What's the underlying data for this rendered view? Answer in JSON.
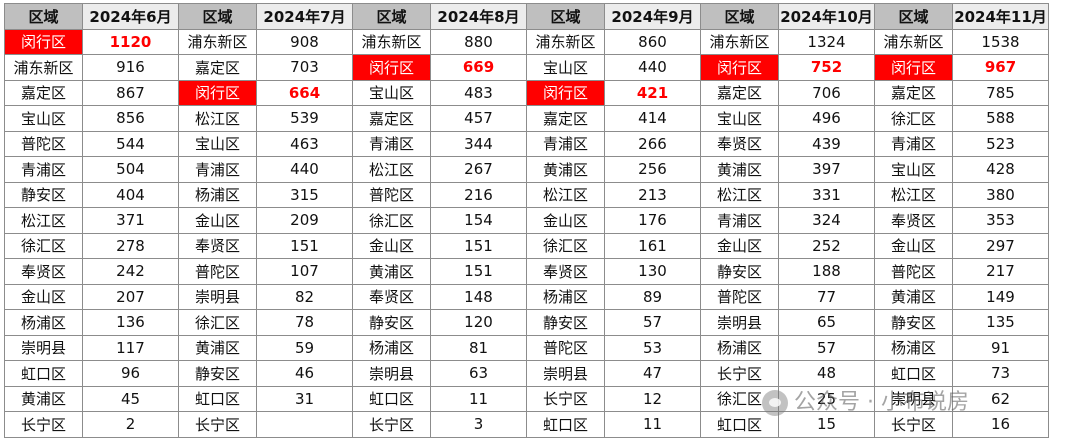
{
  "months": [
    {
      "region_header": "区域",
      "value_header": "2024年6月",
      "rows": [
        {
          "region": "闵行区",
          "value": "1120",
          "highlight": true
        },
        {
          "region": "浦东新区",
          "value": "916"
        },
        {
          "region": "嘉定区",
          "value": "867"
        },
        {
          "region": "宝山区",
          "value": "856"
        },
        {
          "region": "普陀区",
          "value": "544"
        },
        {
          "region": "青浦区",
          "value": "504"
        },
        {
          "region": "静安区",
          "value": "404"
        },
        {
          "region": "松江区",
          "value": "371"
        },
        {
          "region": "徐汇区",
          "value": "278"
        },
        {
          "region": "奉贤区",
          "value": "242"
        },
        {
          "region": "金山区",
          "value": "207"
        },
        {
          "region": "杨浦区",
          "value": "136"
        },
        {
          "region": "崇明县",
          "value": "117"
        },
        {
          "region": "虹口区",
          "value": "96"
        },
        {
          "region": "黄浦区",
          "value": "45"
        },
        {
          "region": "长宁区",
          "value": "2"
        }
      ]
    },
    {
      "region_header": "区域",
      "value_header": "2024年7月",
      "rows": [
        {
          "region": "浦东新区",
          "value": "908"
        },
        {
          "region": "嘉定区",
          "value": "703"
        },
        {
          "region": "闵行区",
          "value": "664",
          "highlight": true
        },
        {
          "region": "松江区",
          "value": "539"
        },
        {
          "region": "宝山区",
          "value": "463"
        },
        {
          "region": "青浦区",
          "value": "440"
        },
        {
          "region": "杨浦区",
          "value": "315"
        },
        {
          "region": "金山区",
          "value": "209"
        },
        {
          "region": "奉贤区",
          "value": "151"
        },
        {
          "region": "普陀区",
          "value": "107"
        },
        {
          "region": "崇明县",
          "value": "82"
        },
        {
          "region": "徐汇区",
          "value": "78"
        },
        {
          "region": "黄浦区",
          "value": "59"
        },
        {
          "region": "静安区",
          "value": "46"
        },
        {
          "region": "虹口区",
          "value": "31"
        },
        {
          "region": "长宁区",
          "value": ""
        }
      ]
    },
    {
      "region_header": "区域",
      "value_header": "2024年8月",
      "rows": [
        {
          "region": "浦东新区",
          "value": "880"
        },
        {
          "region": "闵行区",
          "value": "669",
          "highlight": true
        },
        {
          "region": "宝山区",
          "value": "483"
        },
        {
          "region": "嘉定区",
          "value": "457"
        },
        {
          "region": "青浦区",
          "value": "344"
        },
        {
          "region": "松江区",
          "value": "267"
        },
        {
          "region": "普陀区",
          "value": "216"
        },
        {
          "region": "徐汇区",
          "value": "154"
        },
        {
          "region": "金山区",
          "value": "151"
        },
        {
          "region": "黄浦区",
          "value": "151"
        },
        {
          "region": "奉贤区",
          "value": "148"
        },
        {
          "region": "静安区",
          "value": "120"
        },
        {
          "region": "杨浦区",
          "value": "81"
        },
        {
          "region": "崇明县",
          "value": "63"
        },
        {
          "region": "虹口区",
          "value": "11"
        },
        {
          "region": "长宁区",
          "value": "3"
        }
      ]
    },
    {
      "region_header": "区域",
      "value_header": "2024年9月",
      "rows": [
        {
          "region": "浦东新区",
          "value": "860"
        },
        {
          "region": "宝山区",
          "value": "440"
        },
        {
          "region": "闵行区",
          "value": "421",
          "highlight": true
        },
        {
          "region": "嘉定区",
          "value": "414"
        },
        {
          "region": "青浦区",
          "value": "266"
        },
        {
          "region": "黄浦区",
          "value": "256"
        },
        {
          "region": "松江区",
          "value": "213"
        },
        {
          "region": "金山区",
          "value": "176"
        },
        {
          "region": "徐汇区",
          "value": "161"
        },
        {
          "region": "奉贤区",
          "value": "130"
        },
        {
          "region": "杨浦区",
          "value": "89"
        },
        {
          "region": "静安区",
          "value": "57"
        },
        {
          "region": "普陀区",
          "value": "53"
        },
        {
          "region": "崇明县",
          "value": "47"
        },
        {
          "region": "长宁区",
          "value": "12"
        },
        {
          "region": "虹口区",
          "value": "11"
        }
      ]
    },
    {
      "region_header": "区域",
      "value_header": "2024年10月",
      "rows": [
        {
          "region": "浦东新区",
          "value": "1324"
        },
        {
          "region": "闵行区",
          "value": "752",
          "highlight": true
        },
        {
          "region": "嘉定区",
          "value": "706"
        },
        {
          "region": "宝山区",
          "value": "496"
        },
        {
          "region": "奉贤区",
          "value": "439"
        },
        {
          "region": "黄浦区",
          "value": "397"
        },
        {
          "region": "松江区",
          "value": "331"
        },
        {
          "region": "青浦区",
          "value": "324"
        },
        {
          "region": "金山区",
          "value": "252"
        },
        {
          "region": "静安区",
          "value": "188"
        },
        {
          "region": "普陀区",
          "value": "77"
        },
        {
          "region": "崇明县",
          "value": "65"
        },
        {
          "region": "杨浦区",
          "value": "57"
        },
        {
          "region": "长宁区",
          "value": "48"
        },
        {
          "region": "徐汇区",
          "value": "25"
        },
        {
          "region": "虹口区",
          "value": "15"
        }
      ]
    },
    {
      "region_header": "区域",
      "value_header": "2024年11月",
      "rows": [
        {
          "region": "浦东新区",
          "value": "1538"
        },
        {
          "region": "闵行区",
          "value": "967",
          "highlight": true
        },
        {
          "region": "嘉定区",
          "value": "785"
        },
        {
          "region": "徐汇区",
          "value": "588"
        },
        {
          "region": "青浦区",
          "value": "523"
        },
        {
          "region": "宝山区",
          "value": "428"
        },
        {
          "region": "松江区",
          "value": "380"
        },
        {
          "region": "奉贤区",
          "value": "353"
        },
        {
          "region": "金山区",
          "value": "297"
        },
        {
          "region": "普陀区",
          "value": "217"
        },
        {
          "region": "黄浦区",
          "value": "149"
        },
        {
          "region": "静安区",
          "value": "135"
        },
        {
          "region": "杨浦区",
          "value": "91"
        },
        {
          "region": "虹口区",
          "value": "73"
        },
        {
          "region": "崇明县",
          "value": "62"
        },
        {
          "region": "长宁区",
          "value": "16"
        }
      ]
    }
  ],
  "watermark": {
    "text": "公众号 · 小布说房",
    "icon": "wechat-icon"
  },
  "colors": {
    "highlight_bg": "#ff0000",
    "highlight_text": "#ff0000",
    "header_bg": "#bfbfbf"
  }
}
